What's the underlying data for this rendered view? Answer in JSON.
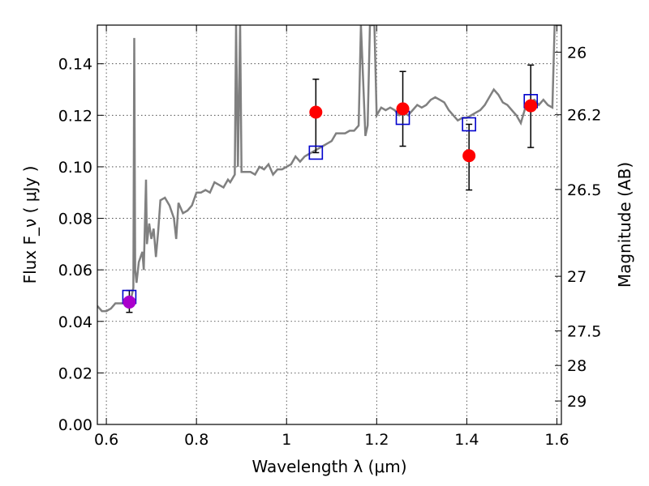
{
  "chart_data": {
    "type": "scatter",
    "xlabel": "Wavelength  λ (μm)",
    "ylabel": "Flux  F_ν  ( μJy )",
    "y2label": "Magnitude (AB)",
    "xlim": [
      0.58,
      1.61
    ],
    "ylim": [
      0.0,
      0.155
    ],
    "x_ticks": [
      0.6,
      0.8,
      1.0,
      1.2,
      1.4,
      1.6
    ],
    "x_tick_labels": [
      "0.6",
      "0.8",
      "1",
      "1.2",
      "1.4",
      "1.6"
    ],
    "y_ticks": [
      0.0,
      0.02,
      0.04,
      0.06,
      0.08,
      0.1,
      0.12,
      0.14
    ],
    "y_tick_labels": [
      "0.00",
      "0.02",
      "0.04",
      "0.06",
      "0.08",
      "0.10",
      "0.12",
      "0.14"
    ],
    "mag_ticks": [
      {
        "label": "26",
        "flux": 0.1445
      },
      {
        "label": "26.2",
        "flux": 0.1202
      },
      {
        "label": "26.5",
        "flux": 0.0912
      },
      {
        "label": "27",
        "flux": 0.0575
      },
      {
        "label": "27.5",
        "flux": 0.0363
      },
      {
        "label": "28",
        "flux": 0.0229
      },
      {
        "label": "29",
        "flux": 0.0091
      }
    ],
    "grid": true,
    "colors": {
      "model": "#808080",
      "observed": "#ff0000",
      "first_point": "#aa00cc",
      "synthetic": "#0000cc",
      "errorbar": "#000000"
    },
    "series": [
      {
        "kind": "line",
        "points": [
          [
            0.58,
            0.046
          ],
          [
            0.59,
            0.044
          ],
          [
            0.6,
            0.044
          ],
          [
            0.61,
            0.045
          ],
          [
            0.62,
            0.047
          ],
          [
            0.63,
            0.047
          ],
          [
            0.64,
            0.047
          ],
          [
            0.645,
            0.048
          ],
          [
            0.65,
            0.048
          ],
          [
            0.655,
            0.049
          ],
          [
            0.66,
            0.053
          ],
          [
            0.662,
            0.15
          ],
          [
            0.664,
            0.06
          ],
          [
            0.667,
            0.055
          ],
          [
            0.672,
            0.063
          ],
          [
            0.68,
            0.067
          ],
          [
            0.683,
            0.06
          ],
          [
            0.688,
            0.095
          ],
          [
            0.69,
            0.07
          ],
          [
            0.695,
            0.078
          ],
          [
            0.7,
            0.072
          ],
          [
            0.705,
            0.076
          ],
          [
            0.71,
            0.065
          ],
          [
            0.715,
            0.075
          ],
          [
            0.72,
            0.087
          ],
          [
            0.73,
            0.088
          ],
          [
            0.74,
            0.085
          ],
          [
            0.75,
            0.08
          ],
          [
            0.755,
            0.072
          ],
          [
            0.76,
            0.086
          ],
          [
            0.77,
            0.082
          ],
          [
            0.78,
            0.083
          ],
          [
            0.79,
            0.085
          ],
          [
            0.8,
            0.09
          ],
          [
            0.81,
            0.09
          ],
          [
            0.82,
            0.091
          ],
          [
            0.83,
            0.09
          ],
          [
            0.84,
            0.094
          ],
          [
            0.85,
            0.093
          ],
          [
            0.86,
            0.092
          ],
          [
            0.87,
            0.095
          ],
          [
            0.875,
            0.094
          ],
          [
            0.885,
            0.097
          ],
          [
            0.888,
            0.155
          ],
          [
            0.892,
            0.1
          ],
          [
            0.897,
            0.155
          ],
          [
            0.9,
            0.098
          ],
          [
            0.91,
            0.098
          ],
          [
            0.92,
            0.098
          ],
          [
            0.93,
            0.097
          ],
          [
            0.94,
            0.1
          ],
          [
            0.95,
            0.099
          ],
          [
            0.96,
            0.101
          ],
          [
            0.97,
            0.097
          ],
          [
            0.98,
            0.099
          ],
          [
            0.99,
            0.099
          ],
          [
            1.0,
            0.1
          ],
          [
            1.01,
            0.101
          ],
          [
            1.02,
            0.104
          ],
          [
            1.03,
            0.102
          ],
          [
            1.04,
            0.104
          ],
          [
            1.05,
            0.105
          ],
          [
            1.06,
            0.106
          ],
          [
            1.07,
            0.107
          ],
          [
            1.08,
            0.108
          ],
          [
            1.09,
            0.109
          ],
          [
            1.1,
            0.11
          ],
          [
            1.11,
            0.113
          ],
          [
            1.12,
            0.113
          ],
          [
            1.13,
            0.113
          ],
          [
            1.14,
            0.114
          ],
          [
            1.15,
            0.114
          ],
          [
            1.16,
            0.116
          ],
          [
            1.165,
            0.155
          ],
          [
            1.175,
            0.112
          ],
          [
            1.18,
            0.116
          ],
          [
            1.185,
            0.155
          ],
          [
            1.195,
            0.155
          ],
          [
            1.2,
            0.12
          ],
          [
            1.21,
            0.123
          ],
          [
            1.22,
            0.122
          ],
          [
            1.23,
            0.123
          ],
          [
            1.24,
            0.122
          ],
          [
            1.25,
            0.12
          ],
          [
            1.26,
            0.121
          ],
          [
            1.27,
            0.12
          ],
          [
            1.28,
            0.122
          ],
          [
            1.29,
            0.124
          ],
          [
            1.3,
            0.123
          ],
          [
            1.31,
            0.124
          ],
          [
            1.32,
            0.126
          ],
          [
            1.33,
            0.127
          ],
          [
            1.34,
            0.126
          ],
          [
            1.35,
            0.125
          ],
          [
            1.36,
            0.122
          ],
          [
            1.37,
            0.12
          ],
          [
            1.38,
            0.118
          ],
          [
            1.39,
            0.119
          ],
          [
            1.4,
            0.119
          ],
          [
            1.41,
            0.12
          ],
          [
            1.42,
            0.121
          ],
          [
            1.43,
            0.122
          ],
          [
            1.44,
            0.124
          ],
          [
            1.45,
            0.127
          ],
          [
            1.46,
            0.13
          ],
          [
            1.47,
            0.128
          ],
          [
            1.48,
            0.125
          ],
          [
            1.49,
            0.124
          ],
          [
            1.5,
            0.122
          ],
          [
            1.51,
            0.12
          ],
          [
            1.52,
            0.117
          ],
          [
            1.53,
            0.123
          ],
          [
            1.54,
            0.125
          ],
          [
            1.55,
            0.126
          ],
          [
            1.56,
            0.124
          ],
          [
            1.57,
            0.126
          ],
          [
            1.58,
            0.124
          ],
          [
            1.59,
            0.123
          ],
          [
            1.595,
            0.155
          ],
          [
            1.6,
            0.155
          ],
          [
            1.61,
            0.155
          ]
        ]
      },
      {
        "kind": "points",
        "points": [
          {
            "x": 0.651,
            "y": 0.0475,
            "yerr_low": 0.0435,
            "yerr_high": 0.052
          },
          {
            "x": 1.065,
            "y": 0.1212,
            "yerr_low": 0.1055,
            "yerr_high": 0.134
          },
          {
            "x": 1.258,
            "y": 0.1225,
            "yerr_low": 0.108,
            "yerr_high": 0.137
          },
          {
            "x": 1.405,
            "y": 0.1043,
            "yerr_low": 0.091,
            "yerr_high": 0.1165
          },
          {
            "x": 1.542,
            "y": 0.1237,
            "yerr_low": 0.1075,
            "yerr_high": 0.1395
          }
        ]
      },
      {
        "kind": "squares",
        "points": [
          {
            "x": 0.651,
            "y": 0.0495
          },
          {
            "x": 1.065,
            "y": 0.1055
          },
          {
            "x": 1.258,
            "y": 0.119
          },
          {
            "x": 1.405,
            "y": 0.1165
          },
          {
            "x": 1.542,
            "y": 0.1255
          }
        ]
      }
    ]
  }
}
